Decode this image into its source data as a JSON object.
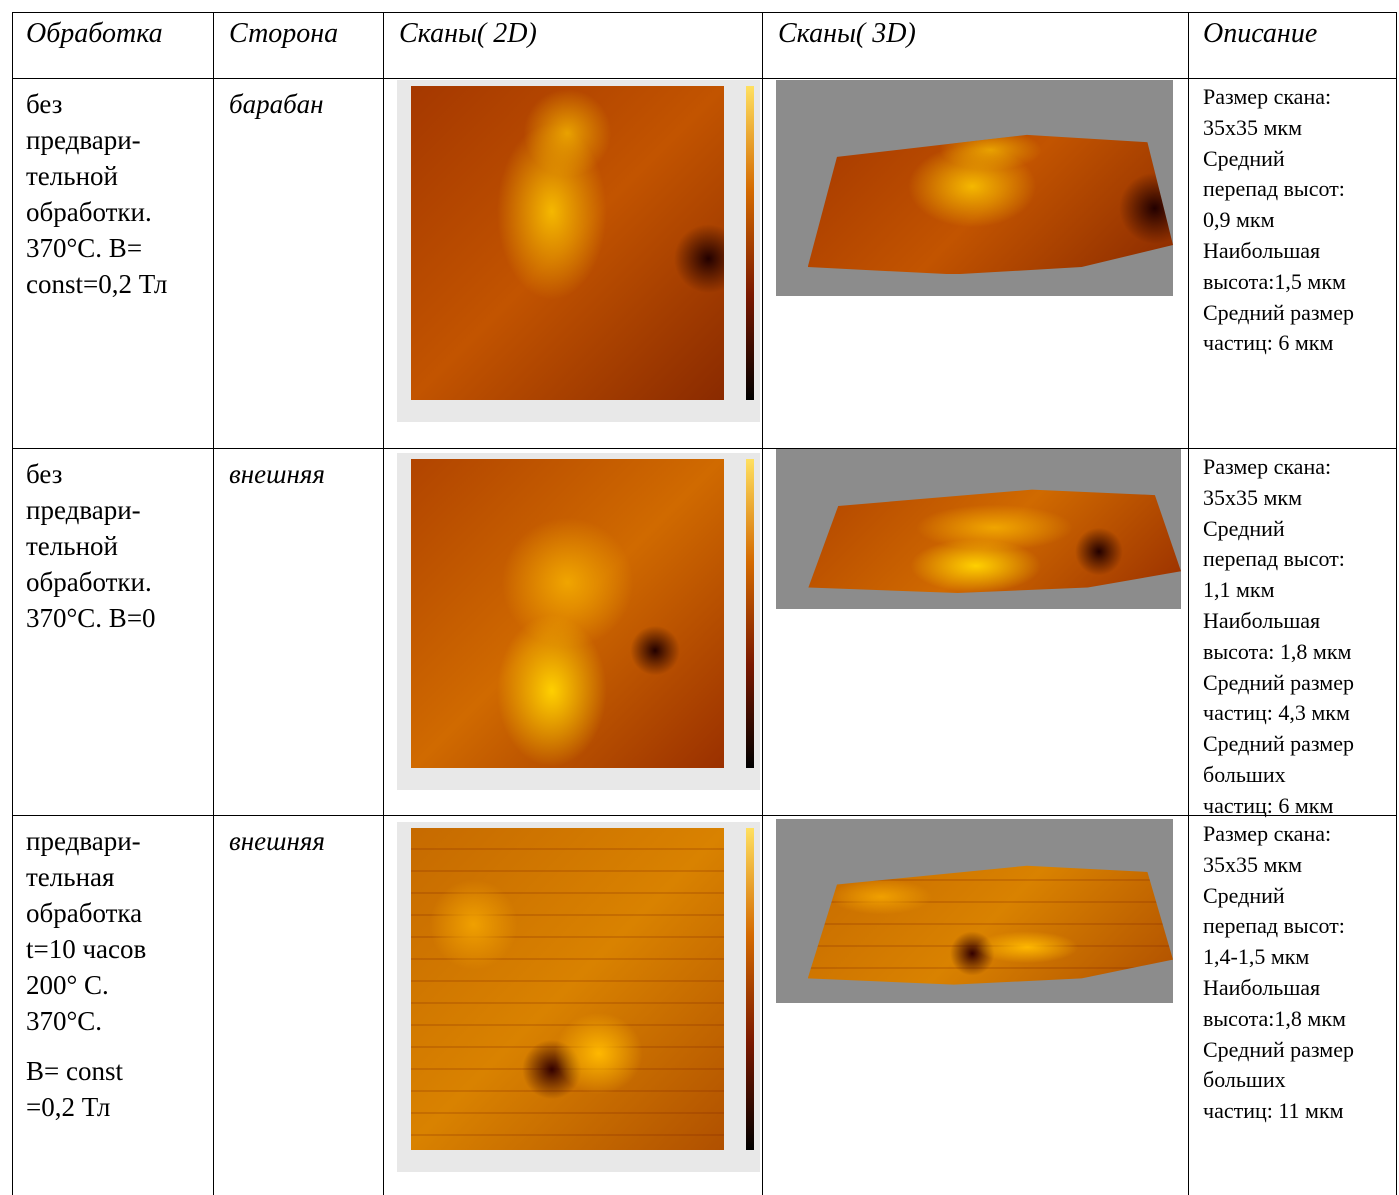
{
  "table": {
    "header": [
      "Обработка",
      "Сторона",
      "Сканы( 2D)",
      "Сканы( 3D)",
      "Описание"
    ],
    "rows": [
      {
        "treatment": [
          [
            "без",
            "предвари-",
            "тельной",
            "обработки.",
            "370°C. B=",
            "const=0,2 Тл"
          ]
        ],
        "side": "барабан",
        "description": [
          "Размер скана:",
          "35x35 мкм",
          "Средний",
          "перепад высот:",
          "0,9 мкм",
          "Наибольшая",
          "высота:1,5 мкм",
          "Средний размер",
          "частиц: 6 мкм"
        ]
      },
      {
        "treatment": [
          [
            "без",
            "предвари-",
            "тельной",
            "обработки.",
            "370°C. B=0"
          ]
        ],
        "side": "внешняя",
        "description": [
          "Размер скана:",
          "35x35 мкм",
          "Средний",
          "перепад высот:",
          "1,1 мкм",
          "Наибольшая",
          "высота: 1,8 мкм",
          "Средний размер",
          "частиц: 4,3 мкм",
          "Средний размер",
          "больших",
          "частиц: 6 мкм"
        ]
      },
      {
        "treatment": [
          [
            "предвари-",
            "тельная",
            "обработка",
            "t=10 часов",
            "200° C.",
            "370°C."
          ],
          [
            "B= const",
            "=0,2 Тл"
          ]
        ],
        "side": "внешняя",
        "description": [
          "Размер скана:",
          "35x35 мкм",
          "Средний",
          "перепад высот:",
          "1,4-1,5 мкм",
          "Наибольшая",
          "высота:1,8 мкм",
          "Средний размер",
          "больших",
          "частиц: 11 мкм"
        ]
      }
    ]
  }
}
